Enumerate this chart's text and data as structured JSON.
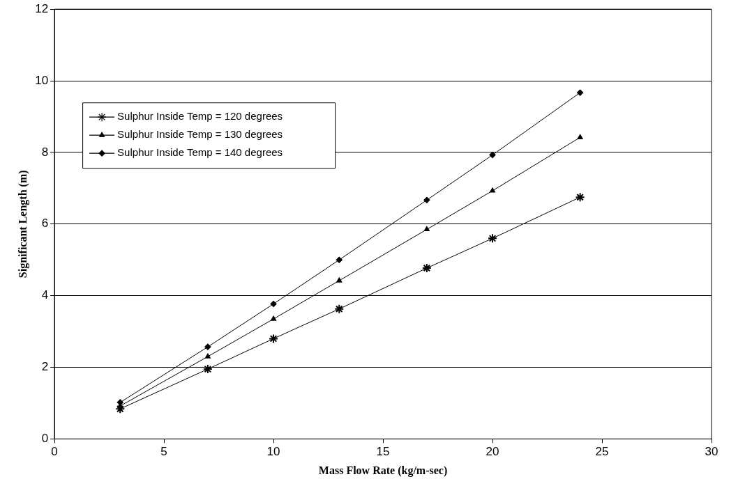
{
  "chart_data": {
    "type": "line",
    "xlabel": "Mass Flow Rate (kg/m-sec)",
    "ylabel": "Significant Length (m)",
    "xlim": [
      0,
      30
    ],
    "xticks": [
      0,
      5,
      10,
      15,
      20,
      25,
      30
    ],
    "ylim": [
      0,
      12
    ],
    "yticks": [
      0,
      2,
      4,
      6,
      8,
      10,
      12
    ],
    "grid": "y",
    "legend": "top left",
    "line_style": "solid",
    "series": [
      {
        "name": "Sulphur Inside Temp = 120 degrees",
        "color": "#000000",
        "marker": "cross",
        "x": [
          3,
          7,
          10,
          13,
          17,
          20,
          24
        ],
        "values": [
          0.84,
          1.95,
          2.8,
          3.63,
          4.77,
          5.6,
          6.75
        ]
      },
      {
        "name": "Sulphur Inside Temp = 130 degrees",
        "color": "#000000",
        "marker": "triangle",
        "x": [
          3,
          7,
          10,
          13,
          17,
          20,
          24
        ],
        "values": [
          0.92,
          2.3,
          3.35,
          4.42,
          5.85,
          6.93,
          8.42
        ]
      },
      {
        "name": "Sulphur Inside Temp = 140 degrees",
        "color": "#000000",
        "marker": "diamond",
        "x": [
          3,
          7,
          10,
          13,
          17,
          20,
          24
        ],
        "values": [
          1.02,
          2.57,
          3.77,
          5.0,
          6.67,
          7.93,
          9.67
        ]
      }
    ]
  }
}
